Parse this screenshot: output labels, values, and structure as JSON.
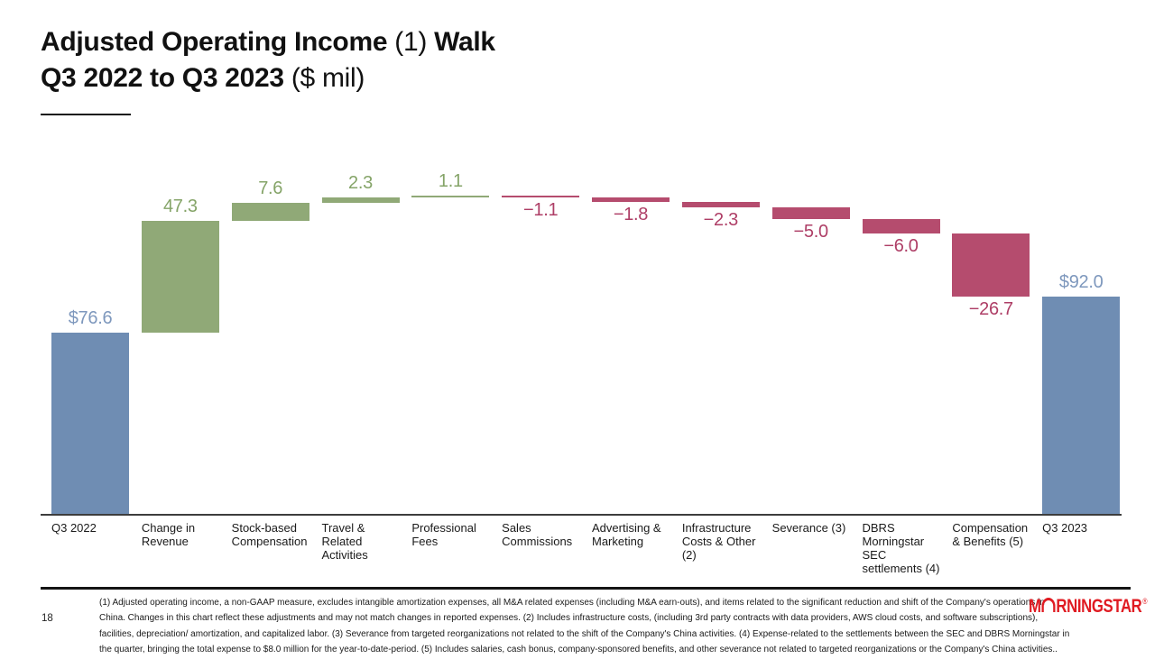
{
  "slide": {
    "title": {
      "bold1": "Adjusted Operating Income",
      "light1": "(1)",
      "bold2": "Walk",
      "bold3": "Q3 2022 to Q3 2023",
      "light2": "($ mil)"
    },
    "page_number": "18",
    "logo": {
      "letter_m": "M",
      "letters_rest": "RNINGSTAR",
      "registered_mark": "®",
      "color": "#E01B22"
    },
    "footnote_lines": [
      "(1) Adjusted operating income, a non-GAAP measure, excludes intangible amortization expenses, all M&A related expenses (including M&A earn-outs), and items related to the significant reduction and shift of the Company's operations in",
      "China. Changes in this chart reflect these adjustments and may not match changes in reported expenses. (2) Includes infrastructure costs, (including 3rd party contracts with data providers, AWS cloud costs, and software subscriptions),",
      "facilities, depreciation/ amortization, and capitalized labor. (3) Severance from targeted reorganizations not related to the shift of the Company's China activities. (4) Expense-related to the settlements between the SEC and DBRS Morningstar in",
      "the quarter, bringing the total expense to $8.0 million for the year-to-date-period. (5) Includes salaries, cash bonus, company-sponsored benefits, and other severance not related to targeted reorganizations or the Company's China activities.."
    ]
  },
  "chart_data": {
    "type": "waterfall",
    "title": "Adjusted Operating Income (1) Walk Q3 2022 to Q3 2023 ($ mil)",
    "categories": [
      "Q3 2022",
      "Change in Revenue",
      "Stock-based Compensation",
      "Travel & Related Activities",
      "Professional Fees",
      "Sales Commissions",
      "Advertising & Marketing",
      "Infrastructure Costs & Other (2)",
      "Severance (3)",
      "DBRS Morningstar SEC settlements (4)",
      "Compensation & Benefits (5)",
      "Q3 2023"
    ],
    "values": [
      76.6,
      47.3,
      7.6,
      2.3,
      1.1,
      -1.1,
      -1.8,
      -2.3,
      -5.0,
      -6.0,
      -26.7,
      92.0
    ],
    "value_labels": [
      "$76.6",
      "47.3",
      "7.6",
      "2.3",
      "1.1",
      "−1.1",
      "−1.8",
      "−2.3",
      "−5.0",
      "−6.0",
      "−26.7",
      "$92.0"
    ],
    "bar_roles": [
      "total",
      "delta",
      "delta",
      "delta",
      "delta",
      "delta",
      "delta",
      "delta",
      "delta",
      "delta",
      "delta",
      "total"
    ],
    "cumulative": [
      76.6,
      123.9,
      131.5,
      133.8,
      134.9,
      133.8,
      132.0,
      129.7,
      124.7,
      118.7,
      92.0,
      92.0
    ],
    "ylim": [
      0,
      140
    ],
    "grid": "off",
    "legend": "none",
    "colors": {
      "total": "#6F8DB3",
      "increase": "#90A977",
      "decrease": "#B54C6E",
      "label_total": "#7E98BD",
      "label_increase": "#85A468",
      "label_decrease": "#AE3E66",
      "axis_line": "#3d3d3d"
    }
  }
}
